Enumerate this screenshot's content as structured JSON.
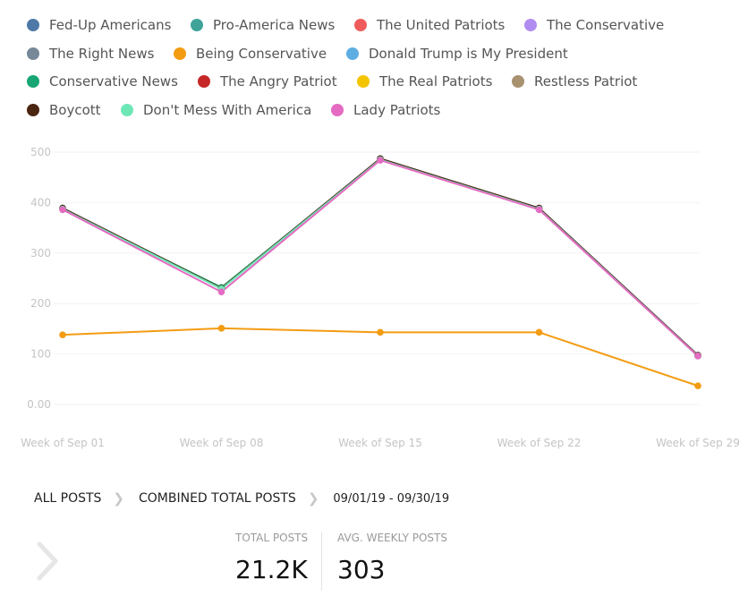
{
  "chart_data": {
    "type": "line",
    "categories": [
      "Week of Sep 01",
      "Week of Sep 08",
      "Week of Sep 15",
      "Week of Sep 22",
      "Week of Sep 29"
    ],
    "y_tick_labels": [
      "0.00",
      "100",
      "200",
      "300",
      "400",
      "500"
    ],
    "ylim": [
      0,
      500
    ],
    "grid": true,
    "legend_position": "top",
    "series": [
      {
        "name": "Fed-Up Americans",
        "color": "#4e79a7",
        "values": [
          388,
          230,
          486,
          388,
          97
        ]
      },
      {
        "name": "Pro-America News",
        "color": "#3fa39a",
        "values": [
          388,
          230,
          486,
          388,
          97
        ]
      },
      {
        "name": "The United Patriots",
        "color": "#ef5b5b",
        "values": [
          388,
          230,
          486,
          388,
          97
        ]
      },
      {
        "name": "The Conservative",
        "color": "#b18cf0",
        "values": [
          388,
          230,
          486,
          388,
          97
        ]
      },
      {
        "name": "The Right News",
        "color": "#778899",
        "values": [
          389,
          231,
          487,
          389,
          98
        ]
      },
      {
        "name": "Being Conservative",
        "color": "#f39c12",
        "values": [
          138,
          151,
          143,
          143,
          37
        ]
      },
      {
        "name": "Donald Trump is My President",
        "color": "#5dade2",
        "values": [
          388,
          230,
          486,
          388,
          97
        ]
      },
      {
        "name": "Conservative News",
        "color": "#17a673",
        "values": [
          387,
          232,
          485,
          387,
          96
        ]
      },
      {
        "name": "The Angry Patriot",
        "color": "#c62828",
        "values": [
          388,
          230,
          486,
          388,
          97
        ]
      },
      {
        "name": "The Real Patriots",
        "color": "#f5c400",
        "values": [
          388,
          230,
          486,
          388,
          97
        ]
      },
      {
        "name": "Restless Patriot",
        "color": "#a89270",
        "values": [
          388,
          230,
          486,
          388,
          97
        ]
      },
      {
        "name": "Boycott",
        "color": "#4a2511",
        "values": [
          389,
          230,
          487,
          389,
          97
        ]
      },
      {
        "name": "Don't Mess With America",
        "color": "#6ee7b7",
        "values": [
          387,
          229,
          485,
          387,
          96
        ]
      },
      {
        "name": "Lady Patriots",
        "color": "#e56bc2",
        "values": [
          386,
          223,
          484,
          386,
          96
        ]
      }
    ]
  },
  "breadcrumb": {
    "all_posts": "ALL POSTS",
    "combined": "COMBINED TOTAL POSTS",
    "date_range": "09/01/19 - 09/30/19"
  },
  "stats": {
    "total_label": "TOTAL POSTS",
    "total_value": "21.2K",
    "avg_label": "AVG. WEEKLY POSTS",
    "avg_value": "303"
  },
  "icons": {
    "nav": "chevron-right-icon",
    "separator": "chevron-right-icon"
  }
}
